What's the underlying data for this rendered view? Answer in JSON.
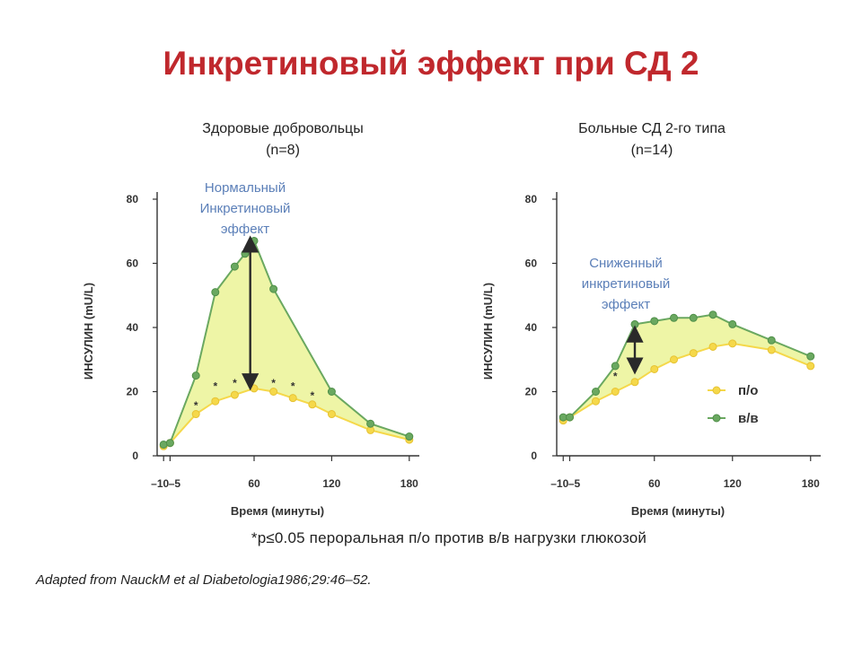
{
  "slide": {
    "title": "Инкретиновый эффект при СД 2",
    "footnote": "*p≤0.05 пероральная п/о против в/в нагрузки глюкозой",
    "source": "Adapted from NauckM et al Diabetologia1986;29:46–52."
  },
  "colors": {
    "title": "#c0282d",
    "oral": "#f5d84a",
    "iv": "#6aa860",
    "fill": "#eef5a6",
    "annotation": "#5b7fb8"
  },
  "chart_data": [
    {
      "type": "line",
      "title": "Здоровые добровольцы",
      "subtitle": "(n=8)",
      "xlabel": "Время (минуты)",
      "ylabel": "ИНСУЛИН (mU/L)",
      "xlim": [
        -15,
        185
      ],
      "ylim": [
        0,
        80
      ],
      "x_ticks": [
        -10,
        -5,
        60,
        120,
        180
      ],
      "x_tick_labels": [
        "–10",
        "–5",
        "60",
        "120",
        "180"
      ],
      "y_ticks": [
        0,
        20,
        40,
        60,
        80
      ],
      "annotation": [
        "Нормальный",
        "Инкретиновый",
        "эффект"
      ],
      "arrow": {
        "x": 57,
        "from": 23,
        "to": 66
      },
      "asterisks": [
        {
          "x": 15,
          "y": 16
        },
        {
          "x": 30,
          "y": 22
        },
        {
          "x": 45,
          "y": 23
        },
        {
          "x": 60,
          "y": 24
        },
        {
          "x": 75,
          "y": 23
        },
        {
          "x": 90,
          "y": 22
        },
        {
          "x": 105,
          "y": 19
        }
      ],
      "series": [
        {
          "name": "п/о",
          "x": [
            -10,
            -5,
            15,
            30,
            45,
            60,
            75,
            90,
            105,
            120,
            150,
            180
          ],
          "y": [
            3,
            4,
            13,
            17,
            19,
            21,
            20,
            18,
            16,
            13,
            8,
            5
          ]
        },
        {
          "name": "в/в",
          "x": [
            -10,
            -5,
            15,
            30,
            45,
            53,
            60,
            75,
            120,
            150,
            180
          ],
          "y": [
            3.5,
            4,
            25,
            51,
            59,
            63,
            67,
            52,
            20,
            10,
            6
          ]
        }
      ]
    },
    {
      "type": "line",
      "title": "Больные СД 2-го типа",
      "subtitle": "(n=14)",
      "xlabel": "Время (минуты)",
      "ylabel": "ИНСУЛИН (mU/L)",
      "xlim": [
        -15,
        185
      ],
      "ylim": [
        0,
        80
      ],
      "x_ticks": [
        -10,
        -5,
        60,
        120,
        180
      ],
      "x_tick_labels": [
        "–10",
        "–5",
        "60",
        "120",
        "180"
      ],
      "y_ticks": [
        0,
        20,
        40,
        60,
        80
      ],
      "annotation": [
        "Сниженный",
        "инкретиновый",
        "эффект"
      ],
      "arrow": {
        "x": 45,
        "from": 28,
        "to": 38
      },
      "asterisks": [
        {
          "x": 30,
          "y": 25
        },
        {
          "x": 45,
          "y": 27
        }
      ],
      "legend": {
        "position": "right",
        "items": [
          {
            "label": "п/о",
            "series": 0
          },
          {
            "label": "в/в",
            "series": 1
          }
        ]
      },
      "series": [
        {
          "name": "п/о",
          "x": [
            -10,
            -5,
            15,
            30,
            45,
            60,
            75,
            90,
            105,
            120,
            150,
            180
          ],
          "y": [
            11,
            12,
            17,
            20,
            23,
            27,
            30,
            32,
            34,
            35,
            33,
            28
          ]
        },
        {
          "name": "в/в",
          "x": [
            -10,
            -5,
            15,
            30,
            45,
            60,
            75,
            90,
            105,
            120,
            150,
            180
          ],
          "y": [
            12,
            12,
            20,
            28,
            41,
            42,
            43,
            43,
            44,
            41,
            36,
            31
          ]
        }
      ]
    }
  ]
}
